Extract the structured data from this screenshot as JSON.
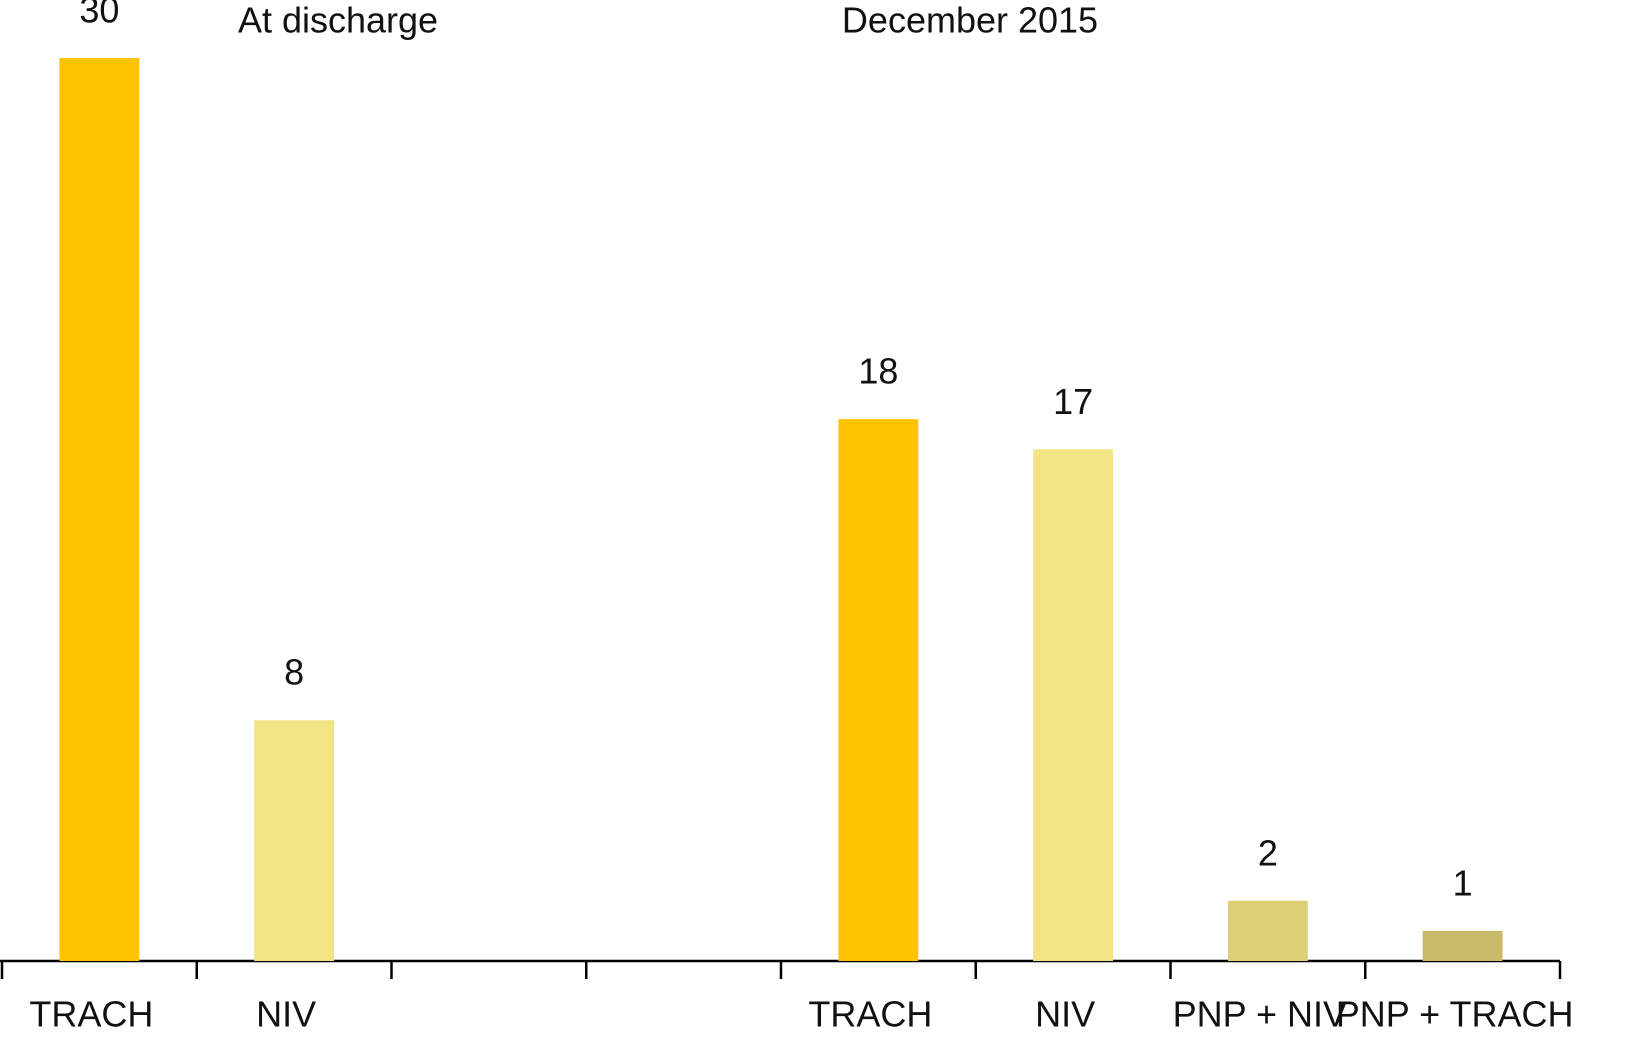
{
  "chart_data": {
    "type": "bar",
    "annotations": [
      "At discharge",
      "December 2015"
    ],
    "categories": [
      "TRACH",
      "NIV",
      null,
      null,
      "TRACH",
      "NIV",
      "PNP + NIV",
      "PNP + TRACH"
    ],
    "values": [
      30,
      8,
      null,
      null,
      18,
      17,
      2,
      1
    ],
    "colors": [
      "#fdc200",
      "#f2e384",
      null,
      null,
      "#fdc200",
      "#f2e384",
      "#ddd074",
      "#c9b96a"
    ],
    "ylim": [
      0,
      30
    ]
  }
}
